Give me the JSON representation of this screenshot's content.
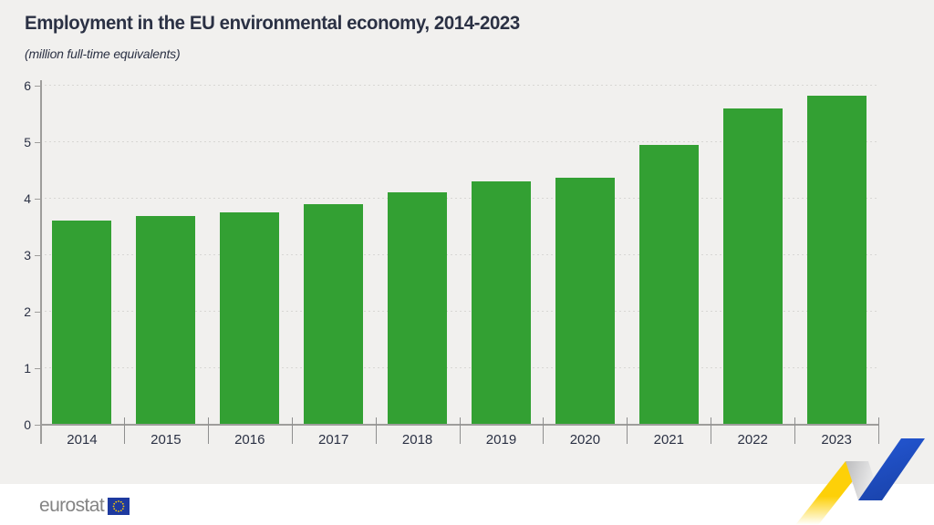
{
  "chart_data": {
    "type": "bar",
    "title": "Employment in the EU environmental economy, 2014-2023",
    "subtitle": "(million full-time equivalents)",
    "categories": [
      "2014",
      "2015",
      "2016",
      "2017",
      "2018",
      "2019",
      "2020",
      "2021",
      "2022",
      "2023"
    ],
    "values": [
      3.61,
      3.69,
      3.76,
      3.91,
      4.11,
      4.3,
      4.37,
      4.95,
      5.6,
      5.83
    ],
    "xlabel": "",
    "ylabel": "million full-time equivalents",
    "ylim": [
      0,
      6
    ],
    "yticks": [
      0,
      1,
      2,
      3,
      4,
      5,
      6
    ],
    "legend": "none",
    "grid": "horizontal-dashed",
    "bar_color": "#33a033"
  },
  "footer": {
    "logo_text": "eurostat",
    "flag_icon": "eu-flag-icon",
    "ribbon_icon": "eurostat-zigzag-ribbon-icon"
  },
  "colors": {
    "background": "#f1f0ee",
    "footer_background": "#ffffff",
    "bar_green": "#33a033",
    "text_navy": "#2b3144",
    "axis_gray": "#9e9d9b",
    "grid_gray": "#d8d7d4",
    "tick_gray": "#8f8f8f",
    "logo_gray": "#848484",
    "flag_blue": "#1e3a9f",
    "star_yellow": "#ffcc00",
    "ribbon_yellow": "#fdd008",
    "ribbon_gray": "#c6c6c8",
    "ribbon_blue": "#1d4fc4"
  }
}
